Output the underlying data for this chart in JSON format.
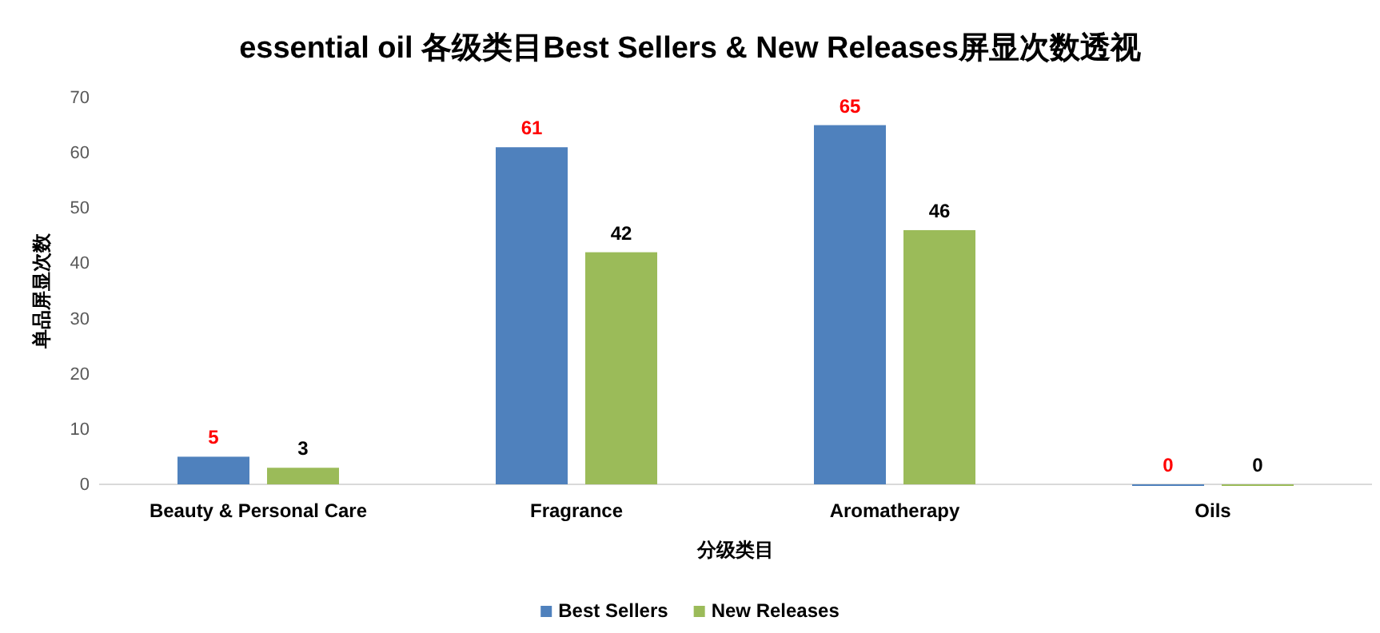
{
  "chart_data": {
    "type": "bar",
    "title": "essential oil 各级类目Best Sellers & New Releases屏显次数透视",
    "xlabel": "分级类目",
    "ylabel": "单品屏显次数",
    "categories": [
      "Beauty & Personal Care",
      "Fragrance",
      "Aromatherapy",
      "Oils"
    ],
    "series": [
      {
        "name": "Best Sellers",
        "color": "#4f81bd",
        "values": [
          5,
          61,
          65,
          0
        ]
      },
      {
        "name": "New Releases",
        "color": "#9bbb59",
        "values": [
          3,
          42,
          46,
          0
        ]
      }
    ],
    "ylim": [
      0,
      70
    ],
    "yticks": [
      0,
      10,
      20,
      30,
      40,
      50,
      60,
      70
    ],
    "grid": false,
    "legend": "bottom",
    "data_labels": true
  }
}
